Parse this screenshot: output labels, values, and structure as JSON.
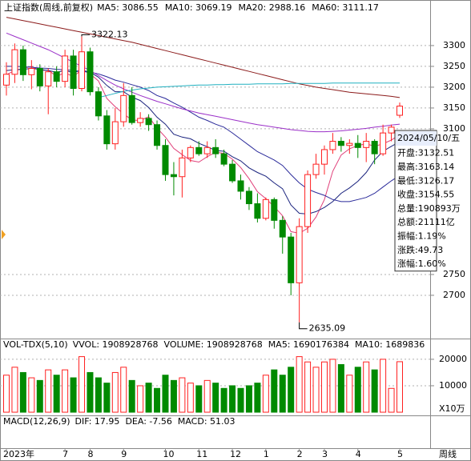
{
  "chart_data": [
    {
      "type": "candlestick",
      "title": "上证指数(周线,前复权)",
      "categories": [
        "2023年",
        null,
        null,
        null,
        null,
        null,
        null,
        "7",
        null,
        null,
        "8",
        null,
        null,
        null,
        "9",
        null,
        null,
        null,
        null,
        "10",
        null,
        null,
        null,
        "11",
        null,
        null,
        null,
        "12",
        null,
        null,
        null,
        "1",
        null,
        null,
        null,
        "2",
        null,
        null,
        "3",
        null,
        null,
        null,
        "4",
        null,
        null,
        null,
        null,
        "5"
      ],
      "open": [
        3205,
        3231,
        3290,
        3230,
        3245,
        3203,
        3237,
        3214,
        3275,
        3197,
        3285,
        3189,
        3131,
        3064,
        3117,
        3180,
        3115,
        3125,
        3110,
        3060,
        2990,
        2985,
        3030,
        3055,
        3040,
        3055,
        3040,
        3015,
        2975,
        2950,
        2920,
        2885,
        2930,
        2880,
        2840,
        2730,
        2865,
        2990,
        3015,
        3050,
        3070,
        3060,
        3065,
        3055,
        3070,
        3040,
        3090,
        3132.51
      ],
      "high": [
        3260,
        3305,
        3300,
        3265,
        3255,
        3245,
        3250,
        3290,
        3290,
        3322.13,
        3295,
        3200,
        3145,
        3150,
        3210,
        3200,
        3140,
        3135,
        3120,
        3075,
        3020,
        3050,
        3060,
        3070,
        3070,
        3075,
        3050,
        3025,
        2990,
        2960,
        2945,
        2935,
        2935,
        2890,
        2850,
        2885,
        3000,
        3040,
        3060,
        3090,
        3080,
        3075,
        3085,
        3090,
        3075,
        3110,
        3110,
        3163.14
      ],
      "low": [
        3180,
        3210,
        3215,
        3195,
        3190,
        3135,
        3200,
        3200,
        3180,
        3190,
        3180,
        3120,
        3050,
        3050,
        3105,
        3110,
        3105,
        3095,
        3050,
        2975,
        2940,
        2935,
        3020,
        3035,
        3030,
        3030,
        3010,
        2970,
        2930,
        2905,
        2875,
        2880,
        2860,
        2800,
        2700,
        2635.09,
        2850,
        2980,
        2990,
        3040,
        3045,
        3040,
        3030,
        3020,
        3015,
        3035,
        3070,
        3126.17
      ],
      "close": [
        3231,
        3290,
        3230,
        3245,
        3203,
        3237,
        3214,
        3275,
        3197,
        3285,
        3189,
        3131,
        3064,
        3117,
        3180,
        3115,
        3125,
        3110,
        3060,
        2990,
        2985,
        3030,
        3055,
        3040,
        3055,
        3040,
        3015,
        2975,
        2950,
        2920,
        2885,
        2930,
        2880,
        2840,
        2730,
        2865,
        2990,
        3015,
        3050,
        3070,
        3060,
        3065,
        3055,
        3070,
        3040,
        3090,
        3104,
        3154.55
      ],
      "up_color": "#ff2020",
      "down_color": "#008a00",
      "ylim": [
        2598,
        3371
      ],
      "yticks": [
        2700,
        2750,
        3100,
        3150,
        3200,
        3250,
        3300
      ],
      "grid": true,
      "series": [
        {
          "name": "MA5: 3086.55",
          "color": "#e0407a",
          "values": [
            3230,
            3240,
            3245,
            3250,
            3240,
            3241,
            3226,
            3235,
            3225,
            3242,
            3232,
            3215,
            3173,
            3153,
            3136,
            3121,
            3120,
            3129,
            3102,
            3080,
            3053,
            3038,
            3024,
            3020,
            3033,
            3044,
            3041,
            3027,
            3007,
            2980,
            2949,
            2932,
            2913,
            2891,
            2853,
            2849,
            2861,
            2888,
            2930,
            2998,
            3037,
            3052,
            3060,
            3064,
            3058,
            3064,
            3073,
            3086.55
          ]
        },
        {
          "name": "MA10: 3069.19",
          "color": "#1a237e",
          "values": [
            3240,
            3242,
            3243,
            3245,
            3243,
            3240,
            3236,
            3240,
            3235,
            3241,
            3236,
            3224,
            3204,
            3189,
            3189,
            3176,
            3168,
            3151,
            3128,
            3111,
            3087,
            3080,
            3076,
            3065,
            3057,
            3048,
            3046,
            3033,
            3023,
            3006,
            2995,
            2986,
            2970,
            2956,
            2917,
            2897,
            2895,
            2901,
            2911,
            2925,
            2945,
            2958,
            2974,
            2995,
            3025,
            3046,
            3058,
            3069.19
          ]
        },
        {
          "name": "MA20: 2988.16",
          "color": "#2a2a9a",
          "values": [
            3250,
            3250,
            3249,
            3248,
            3246,
            3245,
            3243,
            3242,
            3240,
            3238,
            3236,
            3232,
            3225,
            3217,
            3212,
            3206,
            3200,
            3192,
            3180,
            3173,
            3162,
            3152,
            3140,
            3128,
            3120,
            3111,
            3104,
            3090,
            3075,
            3060,
            3045,
            3035,
            3025,
            3012,
            2990,
            2970,
            2955,
            2947,
            2940,
            2930,
            2925,
            2925,
            2930,
            2935,
            2945,
            2960,
            2975,
            2988.16
          ]
        },
        {
          "name": "MA60: 3111.17",
          "color": "#9b30c8",
          "values": [
            3330,
            3322,
            3314,
            3306,
            3298,
            3290,
            3280,
            3270,
            3260,
            3250,
            3240,
            3228,
            3216,
            3205,
            3196,
            3188,
            3180,
            3173,
            3166,
            3160,
            3154,
            3148,
            3143,
            3138,
            3134,
            3130,
            3126,
            3122,
            3118,
            3114,
            3110,
            3107,
            3104,
            3101,
            3098,
            3096,
            3094,
            3093,
            3093,
            3094,
            3095,
            3097,
            3099,
            3101,
            3104,
            3106,
            3109,
            3111.17
          ]
        },
        {
          "color": "#8b1a1a",
          "values": [
            3368,
            3364,
            3360,
            3356,
            3352,
            3348,
            3344,
            3340,
            3336,
            3332,
            3328,
            3324,
            3320,
            3316,
            3312,
            3308,
            3303,
            3298,
            3293,
            3288,
            3283,
            3278,
            3273,
            3268,
            3263,
            3258,
            3253,
            3248,
            3243,
            3238,
            3233,
            3228,
            3223,
            3218,
            3213,
            3208,
            3204,
            3200,
            3197,
            3194,
            3191,
            3188,
            3186,
            3184,
            3182,
            3180,
            3178,
            3175
          ]
        },
        {
          "color": "#20b0c0",
          "values": [
            null,
            null,
            null,
            null,
            null,
            null,
            null,
            null,
            null,
            null,
            null,
            3175,
            3180,
            3185,
            3190,
            3193,
            3196,
            3198,
            3200,
            3201,
            3202,
            3203,
            3204,
            3205,
            3205,
            3206,
            3206,
            3207,
            3207,
            3207,
            3208,
            3208,
            3208,
            3208,
            3209,
            3209,
            3209,
            3209,
            3209,
            3210,
            3210,
            3210,
            3210,
            3210,
            3210,
            3210,
            3210,
            3210
          ]
        }
      ],
      "annotations": [
        {
          "text": "3322.13",
          "x": 9,
          "y": 3322.13
        },
        {
          "text": "2635.09",
          "x": 35,
          "y": 2635.09
        }
      ],
      "info_box": {
        "date": "2024/05/10/五",
        "rows": [
          "开盘:3132.51",
          "最高:3163.14",
          "最低:3126.17",
          "收盘:3154.55",
          "总量:190893万",
          "总额:21111亿",
          "振幅:1.19%",
          "涨跌:49.73",
          "涨幅:1.60%"
        ]
      },
      "x_label": "周线"
    },
    {
      "type": "bar",
      "title": "VOL-TDX(5,10)",
      "legend": [
        "VVOL: 1908928768",
        "VOLUME: 1908928768",
        "MA5: 1690176384",
        "MA10: 1689836"
      ],
      "values": [
        14000,
        17000,
        15000,
        13000,
        12000,
        16000,
        14000,
        16000,
        13000,
        21000,
        15000,
        13000,
        11000,
        15000,
        17000,
        12000,
        10000,
        11000,
        9000,
        14000,
        12000,
        13000,
        11000,
        10000,
        12000,
        11000,
        9000,
        10000,
        9000,
        10000,
        11000,
        14000,
        16000,
        14000,
        17000,
        21000,
        19000,
        17000,
        19000,
        20000,
        18000,
        14000,
        17000,
        19000,
        16000,
        20000,
        9000,
        19089
      ],
      "ylim": [
        -900,
        23300
      ],
      "yticks": [
        10000,
        20000
      ],
      "unit": "X10万"
    },
    {
      "type": "macd",
      "title": "MACD(12,26,9)",
      "legend": [
        "DIF: 17.95",
        "DEA: -7.56",
        "MACD: 51.03"
      ]
    }
  ]
}
